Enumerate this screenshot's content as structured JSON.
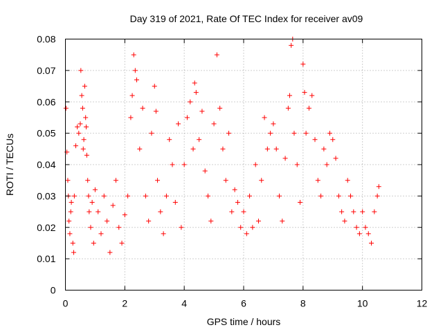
{
  "chart_data": {
    "type": "scatter",
    "title": "Day 319 of 2021, Rate Of TEC Index for receiver av09",
    "xlabel": "GPS time / hours",
    "ylabel": "ROTI / TECUs",
    "xlim": [
      0,
      12
    ],
    "ylim": [
      0,
      0.08
    ],
    "x_ticks": [
      "0",
      "2",
      "4",
      "6",
      "8",
      "10",
      "12"
    ],
    "y_ticks": [
      "0",
      "0.01",
      "0.02",
      "0.03",
      "0.04",
      "0.05",
      "0.06",
      "0.07",
      "0.08"
    ],
    "grid": true,
    "marker": "plus",
    "marker_color": "#ff0000",
    "series": [
      {
        "x": [
          0.02,
          0.05,
          0.08,
          0.1,
          0.12,
          0.15,
          0.18,
          0.2,
          0.25,
          0.28,
          0.3,
          0.35,
          0.4,
          0.45,
          0.5,
          0.52,
          0.55,
          0.58,
          0.6,
          0.62,
          0.65,
          0.68,
          0.7,
          0.72,
          0.75,
          0.78,
          0.8,
          0.85,
          0.9,
          0.95,
          1.0,
          1.1,
          1.2,
          1.3,
          1.4,
          1.5,
          1.6,
          1.7,
          1.8,
          1.9,
          2.0,
          2.1,
          2.2,
          2.25,
          2.3,
          2.35,
          2.4,
          2.5,
          2.6,
          2.7,
          2.8,
          2.9,
          3.0,
          3.05,
          3.1,
          3.2,
          3.3,
          3.4,
          3.5,
          3.6,
          3.7,
          3.8,
          3.9,
          4.0,
          4.1,
          4.2,
          4.3,
          4.35,
          4.4,
          4.5,
          4.6,
          4.7,
          4.8,
          4.9,
          5.0,
          5.1,
          5.2,
          5.3,
          5.4,
          5.5,
          5.6,
          5.7,
          5.8,
          5.9,
          6.0,
          6.1,
          6.2,
          6.3,
          6.4,
          6.5,
          6.6,
          6.7,
          6.8,
          6.9,
          7.0,
          7.1,
          7.2,
          7.3,
          7.4,
          7.5,
          7.55,
          7.6,
          7.65,
          7.7,
          7.8,
          7.9,
          8.0,
          8.05,
          8.1,
          8.2,
          8.3,
          8.4,
          8.5,
          8.6,
          8.7,
          8.8,
          8.9,
          9.0,
          9.1,
          9.2,
          9.3,
          9.4,
          9.5,
          9.6,
          9.7,
          9.8,
          9.9,
          10.0,
          10.1,
          10.2,
          10.3,
          10.4,
          10.5,
          10.55
        ],
        "y": [
          0.058,
          0.044,
          0.035,
          0.03,
          0.022,
          0.018,
          0.025,
          0.028,
          0.015,
          0.012,
          0.03,
          0.046,
          0.052,
          0.05,
          0.053,
          0.07,
          0.062,
          0.058,
          0.045,
          0.048,
          0.065,
          0.055,
          0.052,
          0.043,
          0.035,
          0.03,
          0.025,
          0.02,
          0.028,
          0.015,
          0.032,
          0.025,
          0.018,
          0.03,
          0.022,
          0.012,
          0.027,
          0.035,
          0.02,
          0.015,
          0.024,
          0.03,
          0.055,
          0.062,
          0.075,
          0.07,
          0.067,
          0.045,
          0.058,
          0.03,
          0.022,
          0.05,
          0.065,
          0.057,
          0.035,
          0.025,
          0.018,
          0.03,
          0.048,
          0.04,
          0.028,
          0.053,
          0.02,
          0.04,
          0.055,
          0.06,
          0.045,
          0.066,
          0.063,
          0.048,
          0.057,
          0.038,
          0.03,
          0.022,
          0.053,
          0.075,
          0.058,
          0.045,
          0.035,
          0.05,
          0.025,
          0.032,
          0.028,
          0.02,
          0.025,
          0.018,
          0.03,
          0.02,
          0.04,
          0.022,
          0.035,
          0.055,
          0.045,
          0.05,
          0.053,
          0.045,
          0.03,
          0.022,
          0.042,
          0.058,
          0.062,
          0.078,
          0.08,
          0.05,
          0.04,
          0.028,
          0.072,
          0.063,
          0.05,
          0.058,
          0.062,
          0.048,
          0.035,
          0.03,
          0.045,
          0.04,
          0.05,
          0.048,
          0.042,
          0.03,
          0.025,
          0.022,
          0.035,
          0.03,
          0.025,
          0.02,
          0.018,
          0.025,
          0.02,
          0.018,
          0.015,
          0.025,
          0.03,
          0.033
        ]
      }
    ]
  }
}
